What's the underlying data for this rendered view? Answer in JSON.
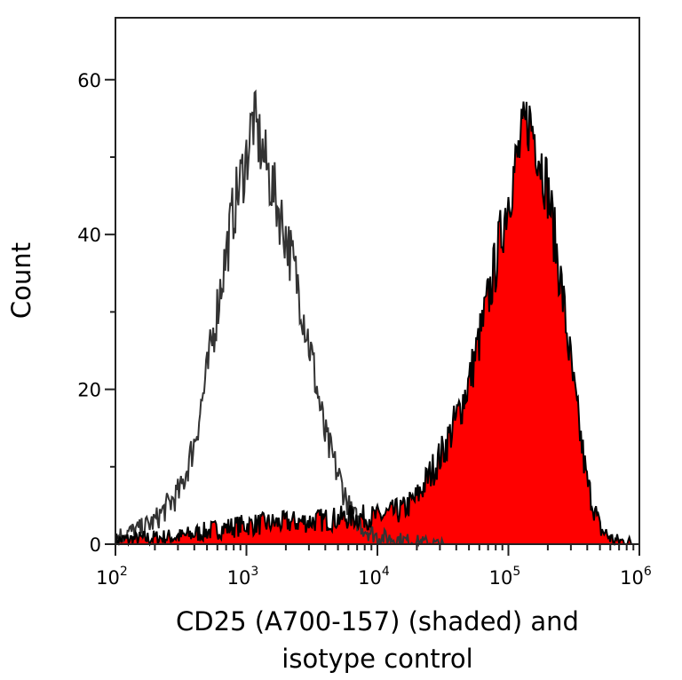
{
  "chart_data": {
    "type": "area",
    "title": "",
    "xlabel_lines": [
      "CD25 (A700-157) (shaded) and",
      "isotype control"
    ],
    "ylabel": "Count",
    "x_scale": "log",
    "xlim": [
      100,
      1000000
    ],
    "ylim": [
      0,
      68
    ],
    "x_ticks": [
      {
        "base": "10",
        "exp": "2"
      },
      {
        "base": "10",
        "exp": "3"
      },
      {
        "base": "10",
        "exp": "4"
      },
      {
        "base": "10",
        "exp": "5"
      },
      {
        "base": "10",
        "exp": "6"
      }
    ],
    "y_ticks": [
      "0",
      "20",
      "40",
      "60"
    ],
    "y_tick_values": [
      0,
      20,
      40,
      60
    ],
    "y_minor_ticks": [
      10,
      30,
      50
    ],
    "grid": false,
    "legend": "none",
    "series": [
      {
        "role": "isotype control",
        "style": "line",
        "color": "#333333",
        "x": [
          100,
          158,
          200,
          251,
          316,
          398,
          501,
          631,
          794,
          1000,
          1122,
          1259,
          1585,
          1995,
          2512,
          3162,
          3981,
          5012,
          6310,
          7943,
          10000,
          15849,
          31623,
          1000000
        ],
        "y": [
          1,
          2,
          3,
          5,
          7,
          13,
          22,
          33,
          43,
          50,
          55,
          52,
          46,
          40,
          33,
          24,
          14,
          9,
          4,
          2,
          1,
          0.5,
          0,
          0
        ]
      },
      {
        "role": "CD25 (A700-157)",
        "style": "filled",
        "color": "#ff0000",
        "line_color": "#000000",
        "x": [
          100,
          200,
          316,
          631,
          1000,
          3162,
          6310,
          10000,
          15849,
          19953,
          25119,
          31623,
          39811,
          50119,
          63096,
          79433,
          100000,
          125893,
          141254,
          158489,
          199526,
          251189,
          316228,
          398107,
          501187,
          630957,
          794328,
          1000000
        ],
        "y": [
          0.5,
          0.8,
          1,
          2,
          2.5,
          3,
          3.5,
          3.5,
          4.5,
          6,
          9,
          12,
          16,
          21,
          28,
          36,
          45,
          52,
          55,
          53,
          46,
          34,
          20,
          8,
          2,
          0.5,
          0.3,
          0
        ]
      }
    ]
  }
}
